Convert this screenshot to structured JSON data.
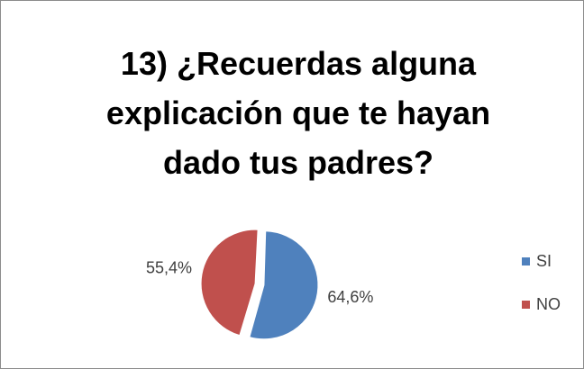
{
  "chart_data": {
    "type": "pie",
    "title": "13) ¿Recuerdas alguna explicación que te hayan dado tus padres?",
    "categories": [
      "SI",
      "NO"
    ],
    "values": [
      64.6,
      55.4
    ],
    "value_labels": [
      "64,6%",
      "55,4%"
    ],
    "colors": [
      "#4f81bd",
      "#c0504d"
    ],
    "legend": "right"
  }
}
